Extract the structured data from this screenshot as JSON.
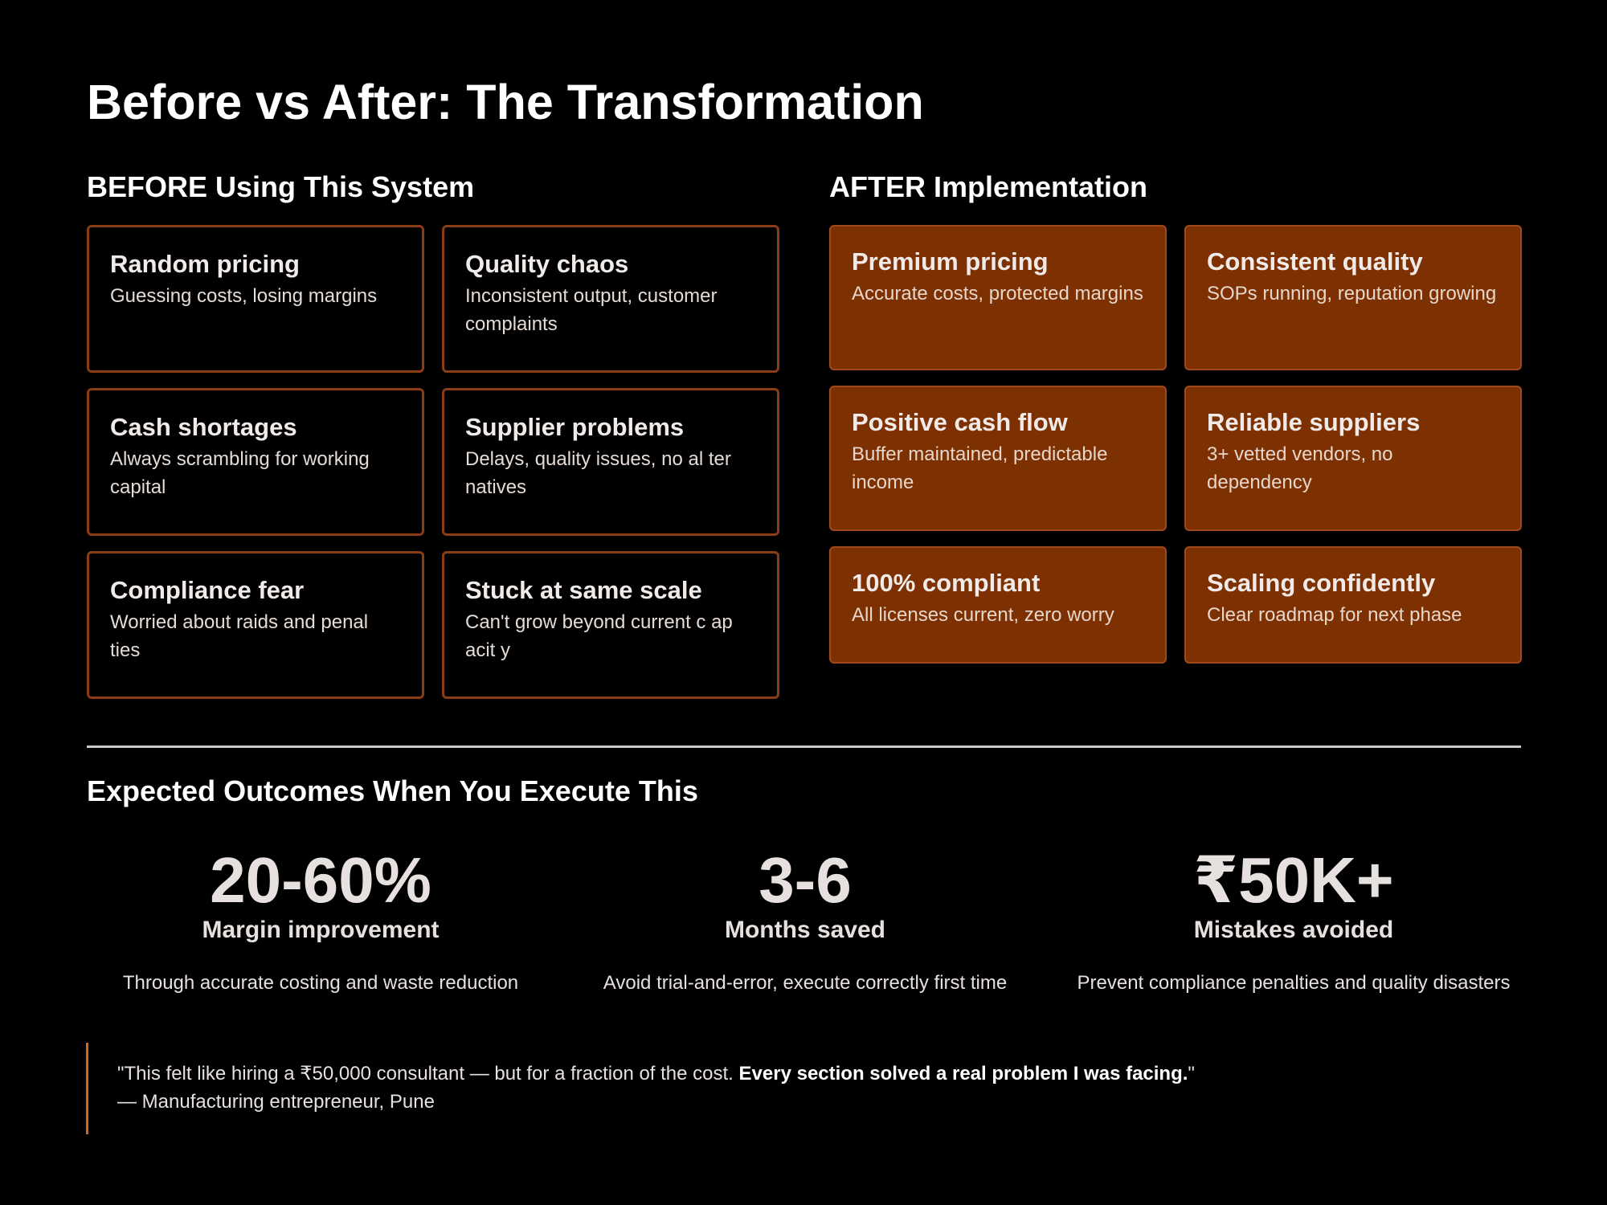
{
  "title": "Before vs After: The Transformation",
  "before": {
    "heading": "BEFORE Using This System",
    "cards": [
      {
        "title": "Random pricing",
        "desc": "Guessing costs, losing margins"
      },
      {
        "title": "Quality chaos",
        "desc": "Inconsistent output, customer complaints"
      },
      {
        "title": "Cash shortages",
        "desc": "Always scrambling for working capital"
      },
      {
        "title": "Supplier problems",
        "desc": "Delays, quality issues, no al ter natives"
      },
      {
        "title": "Compliance fear",
        "desc": "Worried about raids and penal ties"
      },
      {
        "title": "Stuck at same scale",
        "desc": "Can't grow beyond current c ap acit y"
      }
    ]
  },
  "after": {
    "heading": "AFTER Implementation",
    "cards": [
      {
        "title": "Premium pricing",
        "desc": "Accurate costs, protected margins"
      },
      {
        "title": "Consistent quality",
        "desc": "SOPs running, reputation growing"
      },
      {
        "title": "Positive cash flow",
        "desc": "Buffer maintained, predictable income"
      },
      {
        "title": "Reliable suppliers",
        "desc": "3+ vetted vendors, no dependency"
      },
      {
        "title": "100% compliant",
        "desc": "All licenses current, zero worry"
      },
      {
        "title": "Scaling confidently",
        "desc": "Clear roadmap for next phase"
      }
    ]
  },
  "outcomes": {
    "heading": "Expected Outcomes When You Execute This",
    "stats": [
      {
        "value": "20-60%",
        "label": "Margin improvement",
        "desc": "Through accurate costing and waste reduction"
      },
      {
        "value": "3-6",
        "label": "Months saved",
        "desc": "Avoid trial-and-error, execute correctly first time"
      },
      {
        "value": "₹50K+",
        "label": "Mistakes avoided",
        "desc": "Prevent compliance penalties and quality disasters"
      }
    ]
  },
  "testimonial": {
    "quote_start": "\"This felt like hiring a ₹50,000 consultant — but for a fraction of the cost. ",
    "quote_bold": "Every section solved a real problem I was facing.",
    "quote_end": "\"",
    "attribution": "— Manufacturing entrepreneur, Pune"
  },
  "colors": {
    "background": "#000000",
    "before_border": "#8a3c16",
    "after_fill": "#7d3103",
    "quote_accent": "#d2691e"
  }
}
